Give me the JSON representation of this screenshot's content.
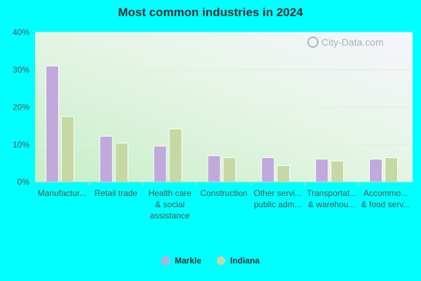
{
  "chart_data": {
    "type": "bar",
    "title": "Most common industries in 2024",
    "categories": [
      [
        "Manufactur..."
      ],
      [
        "Retail trade"
      ],
      [
        "Health care",
        "& social",
        "assistance"
      ],
      [
        "Construction"
      ],
      [
        "Other servi...",
        "public adm..."
      ],
      [
        "Transportat...",
        "& warehou..."
      ],
      [
        "Accommo...",
        "& food serv..."
      ]
    ],
    "series": [
      {
        "name": "Markle",
        "color": "#c0a9db",
        "values": [
          31.0,
          12.2,
          9.6,
          7.0,
          6.5,
          6.1,
          6.1
        ]
      },
      {
        "name": "Indiana",
        "color": "#c6d9a4",
        "values": [
          17.5,
          10.4,
          14.2,
          6.5,
          4.4,
          5.6,
          6.5
        ]
      }
    ],
    "y_ticks": [
      "0%",
      "10%",
      "20%",
      "30%",
      "40%"
    ],
    "ylim": [
      0,
      40
    ],
    "grid": true,
    "legend_position": "bottom"
  },
  "watermark": "City-Data.com"
}
